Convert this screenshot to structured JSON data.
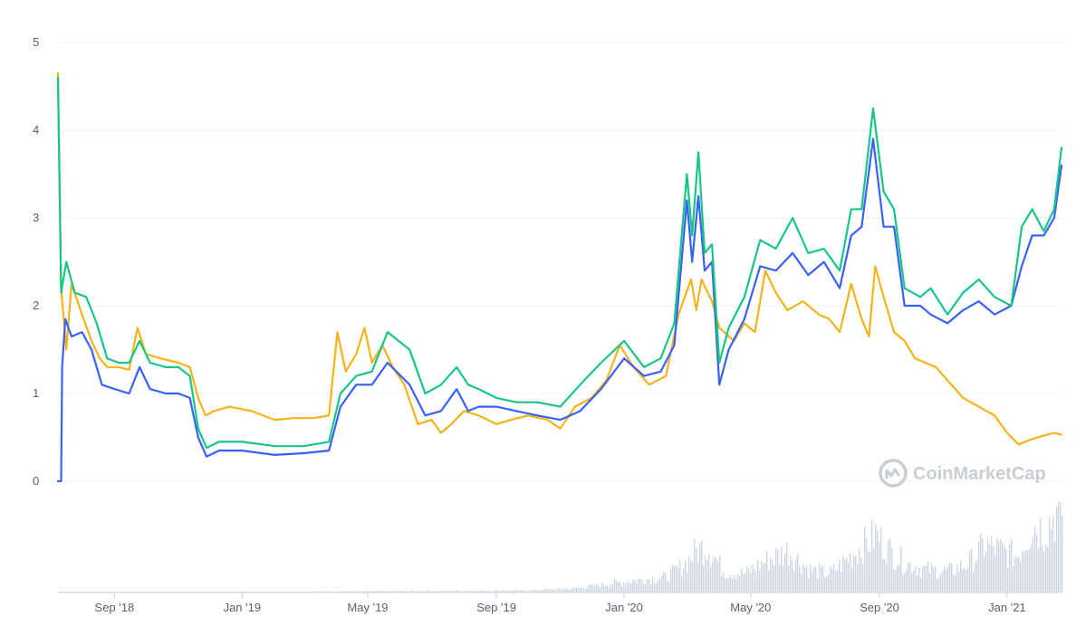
{
  "chart_data": {
    "type": "line",
    "ylim": [
      0,
      5
    ],
    "y_ticks": [
      "0",
      "1",
      "2",
      "3",
      "4",
      "5"
    ],
    "x_ticks": [
      {
        "label": "Sep '18",
        "date": "2018-09-01"
      },
      {
        "label": "Jan '19",
        "date": "2019-01-01"
      },
      {
        "label": "May '19",
        "date": "2019-05-01"
      },
      {
        "label": "Sep '19",
        "date": "2019-09-01"
      },
      {
        "label": "Jan '20",
        "date": "2020-01-01"
      },
      {
        "label": "May '20",
        "date": "2020-05-01"
      },
      {
        "label": "Sep '20",
        "date": "2020-09-01"
      },
      {
        "label": "Jan '21",
        "date": "2021-01-01"
      }
    ],
    "x_range": [
      "2018-07-09",
      "2021-02-22"
    ],
    "grid": true,
    "legend": "none",
    "watermark": "CoinMarketCap",
    "series": [
      {
        "color": "#f6b319",
        "points": [
          [
            "2018-07-09",
            4.65
          ],
          [
            "2018-07-12",
            2.2
          ],
          [
            "2018-07-17",
            1.5
          ],
          [
            "2018-07-22",
            2.25
          ],
          [
            "2018-08-01",
            1.9
          ],
          [
            "2018-08-10",
            1.6
          ],
          [
            "2018-08-18",
            1.4
          ],
          [
            "2018-08-25",
            1.3
          ],
          [
            "2018-09-05",
            1.3
          ],
          [
            "2018-09-15",
            1.27
          ],
          [
            "2018-09-23",
            1.75
          ],
          [
            "2018-10-01",
            1.45
          ],
          [
            "2018-10-15",
            1.4
          ],
          [
            "2018-11-01",
            1.35
          ],
          [
            "2018-11-12",
            1.3
          ],
          [
            "2018-11-20",
            0.95
          ],
          [
            "2018-11-27",
            0.75
          ],
          [
            "2018-12-05",
            0.8
          ],
          [
            "2018-12-20",
            0.85
          ],
          [
            "2019-01-10",
            0.8
          ],
          [
            "2019-02-01",
            0.7
          ],
          [
            "2019-02-20",
            0.72
          ],
          [
            "2019-03-10",
            0.72
          ],
          [
            "2019-03-25",
            0.75
          ],
          [
            "2019-04-02",
            1.7
          ],
          [
            "2019-04-10",
            1.25
          ],
          [
            "2019-04-20",
            1.45
          ],
          [
            "2019-04-28",
            1.75
          ],
          [
            "2019-05-05",
            1.35
          ],
          [
            "2019-05-15",
            1.55
          ],
          [
            "2019-05-25",
            1.3
          ],
          [
            "2019-06-05",
            1.1
          ],
          [
            "2019-06-18",
            0.65
          ],
          [
            "2019-07-01",
            0.7
          ],
          [
            "2019-07-10",
            0.55
          ],
          [
            "2019-07-20",
            0.65
          ],
          [
            "2019-08-01",
            0.8
          ],
          [
            "2019-08-15",
            0.75
          ],
          [
            "2019-09-01",
            0.65
          ],
          [
            "2019-09-15",
            0.7
          ],
          [
            "2019-10-01",
            0.75
          ],
          [
            "2019-10-20",
            0.7
          ],
          [
            "2019-11-01",
            0.6
          ],
          [
            "2019-11-15",
            0.85
          ],
          [
            "2019-12-01",
            0.95
          ],
          [
            "2019-12-15",
            1.15
          ],
          [
            "2019-12-28",
            1.55
          ],
          [
            "2020-01-10",
            1.3
          ],
          [
            "2020-01-25",
            1.1
          ],
          [
            "2020-02-10",
            1.2
          ],
          [
            "2020-02-22",
            1.9
          ],
          [
            "2020-03-05",
            2.3
          ],
          [
            "2020-03-10",
            1.95
          ],
          [
            "2020-03-15",
            2.3
          ],
          [
            "2020-03-25",
            2.05
          ],
          [
            "2020-04-01",
            1.75
          ],
          [
            "2020-04-15",
            1.6
          ],
          [
            "2020-04-25",
            1.8
          ],
          [
            "2020-05-05",
            1.7
          ],
          [
            "2020-05-15",
            2.4
          ],
          [
            "2020-05-25",
            2.15
          ],
          [
            "2020-06-05",
            1.95
          ],
          [
            "2020-06-20",
            2.05
          ],
          [
            "2020-07-05",
            1.9
          ],
          [
            "2020-07-15",
            1.85
          ],
          [
            "2020-07-25",
            1.7
          ],
          [
            "2020-08-05",
            2.25
          ],
          [
            "2020-08-15",
            1.85
          ],
          [
            "2020-08-22",
            1.65
          ],
          [
            "2020-08-28",
            2.45
          ],
          [
            "2020-09-05",
            2.1
          ],
          [
            "2020-09-15",
            1.7
          ],
          [
            "2020-09-25",
            1.6
          ],
          [
            "2020-10-05",
            1.4
          ],
          [
            "2020-10-15",
            1.35
          ],
          [
            "2020-10-25",
            1.3
          ],
          [
            "2020-11-05",
            1.15
          ],
          [
            "2020-11-20",
            0.95
          ],
          [
            "2020-12-05",
            0.85
          ],
          [
            "2020-12-20",
            0.75
          ],
          [
            "2021-01-01",
            0.55
          ],
          [
            "2021-01-12",
            0.42
          ],
          [
            "2021-01-25",
            0.48
          ],
          [
            "2021-02-05",
            0.52
          ],
          [
            "2021-02-15",
            0.55
          ],
          [
            "2021-02-22",
            0.53
          ]
        ]
      },
      {
        "color": "#3861fb",
        "points": [
          [
            "2018-07-09",
            0.0
          ],
          [
            "2018-07-12",
            0.0
          ],
          [
            "2018-07-13",
            1.3
          ],
          [
            "2018-07-16",
            1.85
          ],
          [
            "2018-07-22",
            1.65
          ],
          [
            "2018-08-01",
            1.7
          ],
          [
            "2018-08-10",
            1.5
          ],
          [
            "2018-08-20",
            1.1
          ],
          [
            "2018-09-01",
            1.05
          ],
          [
            "2018-09-15",
            1.0
          ],
          [
            "2018-09-25",
            1.3
          ],
          [
            "2018-10-05",
            1.05
          ],
          [
            "2018-10-20",
            1.0
          ],
          [
            "2018-11-01",
            1.0
          ],
          [
            "2018-11-12",
            0.95
          ],
          [
            "2018-11-20",
            0.5
          ],
          [
            "2018-11-28",
            0.28
          ],
          [
            "2018-12-10",
            0.35
          ],
          [
            "2019-01-01",
            0.35
          ],
          [
            "2019-02-01",
            0.3
          ],
          [
            "2019-03-01",
            0.32
          ],
          [
            "2019-03-25",
            0.35
          ],
          [
            "2019-04-05",
            0.85
          ],
          [
            "2019-04-20",
            1.1
          ],
          [
            "2019-05-05",
            1.1
          ],
          [
            "2019-05-20",
            1.35
          ],
          [
            "2019-06-10",
            1.1
          ],
          [
            "2019-06-25",
            0.75
          ],
          [
            "2019-07-10",
            0.8
          ],
          [
            "2019-07-25",
            1.05
          ],
          [
            "2019-08-05",
            0.8
          ],
          [
            "2019-08-15",
            0.85
          ],
          [
            "2019-09-01",
            0.85
          ],
          [
            "2019-09-20",
            0.8
          ],
          [
            "2019-10-10",
            0.75
          ],
          [
            "2019-11-01",
            0.7
          ],
          [
            "2019-11-20",
            0.8
          ],
          [
            "2019-12-10",
            1.05
          ],
          [
            "2020-01-01",
            1.4
          ],
          [
            "2020-01-20",
            1.2
          ],
          [
            "2020-02-05",
            1.25
          ],
          [
            "2020-02-18",
            1.55
          ],
          [
            "2020-03-01",
            3.2
          ],
          [
            "2020-03-06",
            2.5
          ],
          [
            "2020-03-12",
            3.25
          ],
          [
            "2020-03-18",
            2.4
          ],
          [
            "2020-03-25",
            2.5
          ],
          [
            "2020-04-01",
            1.1
          ],
          [
            "2020-04-10",
            1.5
          ],
          [
            "2020-04-25",
            1.85
          ],
          [
            "2020-05-10",
            2.45
          ],
          [
            "2020-05-25",
            2.4
          ],
          [
            "2020-06-10",
            2.6
          ],
          [
            "2020-06-25",
            2.35
          ],
          [
            "2020-07-10",
            2.5
          ],
          [
            "2020-07-25",
            2.2
          ],
          [
            "2020-08-05",
            2.8
          ],
          [
            "2020-08-15",
            2.9
          ],
          [
            "2020-08-26",
            3.9
          ],
          [
            "2020-09-05",
            2.9
          ],
          [
            "2020-09-15",
            2.9
          ],
          [
            "2020-09-25",
            2.0
          ],
          [
            "2020-10-10",
            2.0
          ],
          [
            "2020-10-20",
            1.9
          ],
          [
            "2020-11-05",
            1.8
          ],
          [
            "2020-11-20",
            1.95
          ],
          [
            "2020-12-05",
            2.05
          ],
          [
            "2020-12-20",
            1.9
          ],
          [
            "2021-01-05",
            2.0
          ],
          [
            "2021-01-15",
            2.45
          ],
          [
            "2021-01-25",
            2.8
          ],
          [
            "2021-02-05",
            2.8
          ],
          [
            "2021-02-15",
            3.0
          ],
          [
            "2021-02-22",
            3.6
          ]
        ]
      },
      {
        "color": "#16c784",
        "points": [
          [
            "2018-07-09",
            4.6
          ],
          [
            "2018-07-12",
            2.15
          ],
          [
            "2018-07-17",
            2.5
          ],
          [
            "2018-07-25",
            2.15
          ],
          [
            "2018-08-05",
            2.1
          ],
          [
            "2018-08-15",
            1.8
          ],
          [
            "2018-08-25",
            1.4
          ],
          [
            "2018-09-05",
            1.35
          ],
          [
            "2018-09-15",
            1.35
          ],
          [
            "2018-09-25",
            1.6
          ],
          [
            "2018-10-05",
            1.35
          ],
          [
            "2018-10-20",
            1.3
          ],
          [
            "2018-11-01",
            1.3
          ],
          [
            "2018-11-12",
            1.2
          ],
          [
            "2018-11-20",
            0.6
          ],
          [
            "2018-11-28",
            0.38
          ],
          [
            "2018-12-10",
            0.45
          ],
          [
            "2019-01-01",
            0.45
          ],
          [
            "2019-02-01",
            0.4
          ],
          [
            "2019-03-01",
            0.4
          ],
          [
            "2019-03-25",
            0.45
          ],
          [
            "2019-04-05",
            1.0
          ],
          [
            "2019-04-20",
            1.2
          ],
          [
            "2019-05-05",
            1.25
          ],
          [
            "2019-05-20",
            1.7
          ],
          [
            "2019-06-10",
            1.5
          ],
          [
            "2019-06-25",
            1.0
          ],
          [
            "2019-07-10",
            1.1
          ],
          [
            "2019-07-25",
            1.3
          ],
          [
            "2019-08-05",
            1.1
          ],
          [
            "2019-08-15",
            1.05
          ],
          [
            "2019-09-01",
            0.95
          ],
          [
            "2019-09-20",
            0.9
          ],
          [
            "2019-10-10",
            0.9
          ],
          [
            "2019-11-01",
            0.85
          ],
          [
            "2019-11-20",
            1.1
          ],
          [
            "2019-12-10",
            1.35
          ],
          [
            "2020-01-01",
            1.6
          ],
          [
            "2020-01-20",
            1.3
          ],
          [
            "2020-02-05",
            1.4
          ],
          [
            "2020-02-18",
            1.8
          ],
          [
            "2020-03-01",
            3.5
          ],
          [
            "2020-03-06",
            2.8
          ],
          [
            "2020-03-12",
            3.75
          ],
          [
            "2020-03-18",
            2.6
          ],
          [
            "2020-03-25",
            2.7
          ],
          [
            "2020-04-01",
            1.35
          ],
          [
            "2020-04-10",
            1.75
          ],
          [
            "2020-04-25",
            2.1
          ],
          [
            "2020-05-10",
            2.75
          ],
          [
            "2020-05-25",
            2.65
          ],
          [
            "2020-06-10",
            3.0
          ],
          [
            "2020-06-25",
            2.6
          ],
          [
            "2020-07-10",
            2.65
          ],
          [
            "2020-07-25",
            2.4
          ],
          [
            "2020-08-05",
            3.1
          ],
          [
            "2020-08-15",
            3.1
          ],
          [
            "2020-08-26",
            4.25
          ],
          [
            "2020-09-05",
            3.3
          ],
          [
            "2020-09-15",
            3.1
          ],
          [
            "2020-09-25",
            2.2
          ],
          [
            "2020-10-10",
            2.1
          ],
          [
            "2020-10-20",
            2.2
          ],
          [
            "2020-11-05",
            1.9
          ],
          [
            "2020-11-20",
            2.15
          ],
          [
            "2020-12-05",
            2.3
          ],
          [
            "2020-12-20",
            2.1
          ],
          [
            "2021-01-05",
            2.0
          ],
          [
            "2021-01-15",
            2.9
          ],
          [
            "2021-01-25",
            3.1
          ],
          [
            "2021-02-05",
            2.85
          ],
          [
            "2021-02-15",
            3.1
          ],
          [
            "2021-02-22",
            3.8
          ]
        ]
      }
    ],
    "volume": {
      "color": "#cfd6e4",
      "points": [
        [
          "2018-07-09",
          0.5
        ],
        [
          "2018-10-01",
          0.5
        ],
        [
          "2019-01-01",
          0.6
        ],
        [
          "2019-04-01",
          1
        ],
        [
          "2019-07-01",
          1.5
        ],
        [
          "2019-10-01",
          2
        ],
        [
          "2019-11-15",
          4
        ],
        [
          "2019-12-15",
          8
        ],
        [
          "2020-01-15",
          12
        ],
        [
          "2020-02-10",
          15
        ],
        [
          "2020-02-25",
          25
        ],
        [
          "2020-03-10",
          40
        ],
        [
          "2020-03-20",
          45
        ],
        [
          "2020-04-05",
          20
        ],
        [
          "2020-04-25",
          18
        ],
        [
          "2020-05-15",
          30
        ],
        [
          "2020-06-05",
          40
        ],
        [
          "2020-06-25",
          22
        ],
        [
          "2020-07-15",
          18
        ],
        [
          "2020-08-05",
          35
        ],
        [
          "2020-08-28",
          55
        ],
        [
          "2020-09-10",
          40
        ],
        [
          "2020-09-25",
          28
        ],
        [
          "2020-10-15",
          22
        ],
        [
          "2020-11-05",
          20
        ],
        [
          "2020-11-25",
          28
        ],
        [
          "2020-12-10",
          45
        ],
        [
          "2020-12-25",
          40
        ],
        [
          "2021-01-10",
          35
        ],
        [
          "2021-01-25",
          65
        ],
        [
          "2021-02-05",
          60
        ],
        [
          "2021-02-15",
          75
        ],
        [
          "2021-02-22",
          80
        ]
      ]
    }
  }
}
